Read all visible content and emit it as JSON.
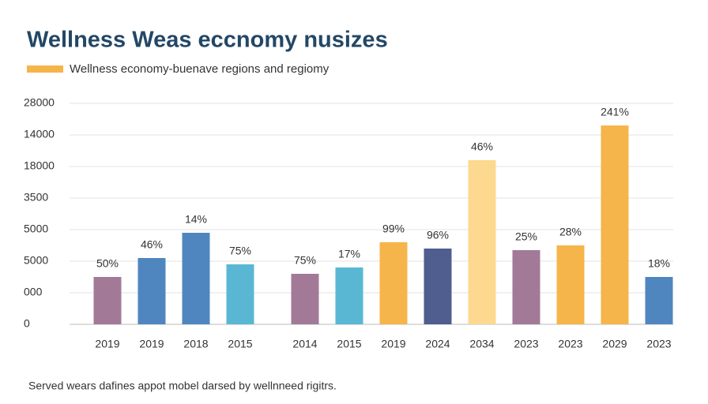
{
  "chart_data": {
    "type": "bar",
    "title": "Wellness Weas eccnomy nusizes",
    "legend": {
      "name": "Wellness economy-buenave regions and regiomy",
      "color": "#f5b54a"
    },
    "footnote": "Served wears dafines appot mobel darsed by wellnneed rigitrs.",
    "categories": [
      "2019",
      "2019",
      "2018",
      "2015",
      "2014",
      "2015",
      "2019",
      "2024",
      "2034",
      "2023",
      "2023",
      "2029",
      "2023"
    ],
    "values": [
      1.5,
      2.1,
      2.9,
      1.9,
      1.6,
      1.8,
      2.6,
      2.4,
      5.2,
      2.35,
      2.5,
      6.3,
      1.5
    ],
    "labels": [
      "50%",
      "46%",
      "14%",
      "75%",
      "75%",
      "17%",
      "99%",
      "96%",
      "46%",
      "25%",
      "28%",
      "241%",
      "18%"
    ],
    "colors": [
      "#a27a98",
      "#4f86c0",
      "#4f86c0",
      "#5ab7d4",
      "#a27a98",
      "#5ab7d4",
      "#f5b54a",
      "#4f5d8f",
      "#fcd98e",
      "#a27a98",
      "#f5b54a",
      "#f5b54a",
      "#4f86c0"
    ],
    "ylim": [
      0,
      7
    ],
    "yticks": [
      {
        "value": 0,
        "label": "0"
      },
      {
        "value": 1,
        "label": "000"
      },
      {
        "value": 2,
        "label": "5000"
      },
      {
        "value": 3,
        "label": "5000"
      },
      {
        "value": 4,
        "label": "3500"
      },
      {
        "value": 5,
        "label": "18000"
      },
      {
        "value": 6,
        "label": "14000"
      },
      {
        "value": 7,
        "label": "28000"
      }
    ],
    "grid": true
  }
}
